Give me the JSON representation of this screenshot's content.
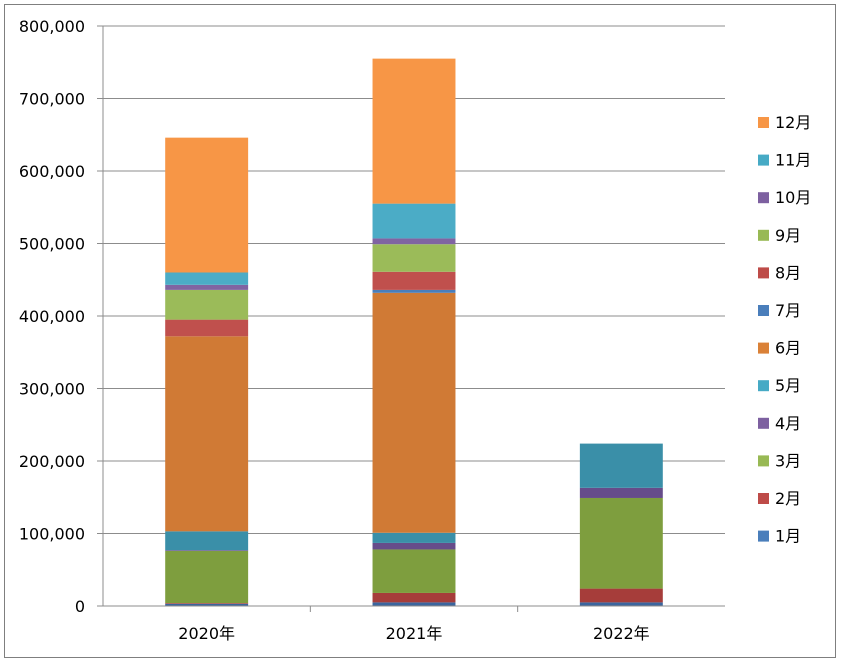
{
  "chart_data": {
    "type": "bar",
    "stacked": true,
    "categories": [
      "2020年",
      "2021年",
      "2022年"
    ],
    "ylim": [
      0,
      800000
    ],
    "yticks": [
      0,
      100000,
      200000,
      300000,
      400000,
      500000,
      600000,
      700000,
      800000
    ],
    "ytick_labels": [
      "0",
      "100,000",
      "200,000",
      "300,000",
      "400,000",
      "500,000",
      "600,000",
      "700,000",
      "800,000"
    ],
    "grid": true,
    "legend_position": "right",
    "series": [
      {
        "name": "1月",
        "color": "#4A7EBB",
        "values": [
          3000,
          5000,
          5000
        ]
      },
      {
        "name": "2月",
        "color": "#BE4B48",
        "values": [
          1000,
          13000,
          19000
        ]
      },
      {
        "name": "3月",
        "color": "#98B954",
        "values": [
          72000,
          60000,
          125000
        ]
      },
      {
        "name": "4月",
        "color": "#7D60A0",
        "values": [
          1000,
          9000,
          14000
        ]
      },
      {
        "name": "5月",
        "color": "#46AAC5",
        "values": [
          26000,
          14000,
          61000
        ]
      },
      {
        "name": "6月",
        "color": "#DA8137",
        "values": [
          269000,
          331000,
          0
        ]
      },
      {
        "name": "7月",
        "color": "#4A7EBB",
        "values": [
          0,
          4000,
          0
        ]
      },
      {
        "name": "8月",
        "color": "#BE4B48",
        "values": [
          23000,
          25000,
          0
        ]
      },
      {
        "name": "9月",
        "color": "#98B954",
        "values": [
          41000,
          38000,
          0
        ]
      },
      {
        "name": "10月",
        "color": "#7D60A0",
        "values": [
          7000,
          8000,
          0
        ]
      },
      {
        "name": "11月",
        "color": "#46AAC5",
        "values": [
          17000,
          48000,
          0
        ]
      },
      {
        "name": "12月",
        "color": "#F79646",
        "values": [
          186000,
          200000,
          0
        ]
      }
    ],
    "display_colors": [
      "#3B659E",
      "#A63D3A",
      "#7E9E3E",
      "#664C8A",
      "#3A8FA8",
      "#D07A35",
      "#4A7EBB",
      "#C0504D",
      "#9BBB59",
      "#8064A2",
      "#4BACC6",
      "#F79646"
    ]
  }
}
